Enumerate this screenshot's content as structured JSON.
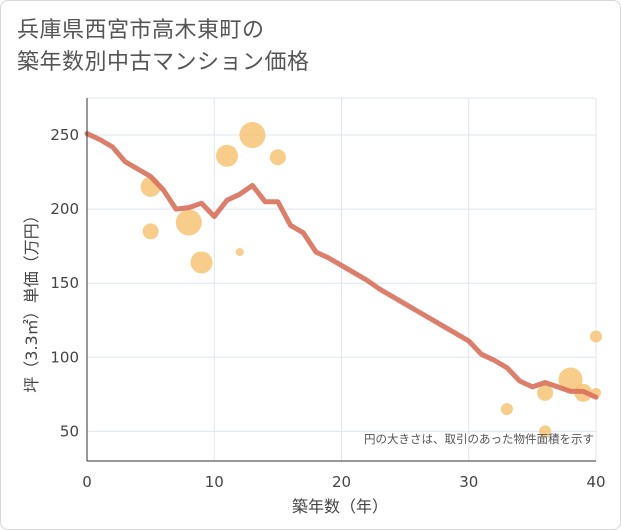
{
  "title_line1": "兵庫県西宮市高木東町の",
  "title_line2": "築年数別中古マンション価格",
  "chart_data": {
    "type": "line+bubble",
    "xlabel": "築年数（年）",
    "ylabel": "坪（3.3㎡）単価（万円）",
    "xlim": [
      0,
      40
    ],
    "ylim": [
      30,
      275
    ],
    "xticks": [
      0,
      10,
      20,
      30,
      40
    ],
    "yticks": [
      50,
      100,
      150,
      200,
      250
    ],
    "note": "円の大きさは、取引のあった物件面積を示す",
    "colors": {
      "line": "#d9705b",
      "bubble": "#f5c16c",
      "grid": "#dfe5ef",
      "axis": "#333333"
    },
    "line": {
      "x": [
        0,
        1,
        2,
        3,
        4,
        5,
        6,
        7,
        8,
        9,
        10,
        11,
        12,
        13,
        14,
        15,
        16,
        17,
        18,
        19,
        20,
        21,
        22,
        23,
        24,
        25,
        26,
        27,
        28,
        29,
        30,
        31,
        32,
        33,
        34,
        35,
        36,
        37,
        38,
        39,
        40
      ],
      "y": [
        251,
        247,
        242,
        232,
        227,
        222,
        213,
        200,
        201,
        204,
        195,
        206,
        210,
        216,
        205,
        205,
        189,
        184,
        171,
        167,
        162,
        157,
        152,
        146,
        141,
        136,
        131,
        126,
        121,
        116,
        111,
        102,
        98,
        93,
        84,
        80,
        83,
        80,
        77,
        77,
        73
      ]
    },
    "bubbles": [
      {
        "x": 5,
        "y": 215,
        "size": 10
      },
      {
        "x": 5,
        "y": 185,
        "size": 8
      },
      {
        "x": 8,
        "y": 191,
        "size": 13
      },
      {
        "x": 9,
        "y": 164,
        "size": 11
      },
      {
        "x": 11,
        "y": 236,
        "size": 11
      },
      {
        "x": 12,
        "y": 171,
        "size": 4
      },
      {
        "x": 13,
        "y": 250,
        "size": 13
      },
      {
        "x": 15,
        "y": 235,
        "size": 8
      },
      {
        "x": 33,
        "y": 65,
        "size": 6
      },
      {
        "x": 36,
        "y": 76,
        "size": 8
      },
      {
        "x": 36,
        "y": 50,
        "size": 6
      },
      {
        "x": 38,
        "y": 85,
        "size": 12
      },
      {
        "x": 39,
        "y": 76,
        "size": 9
      },
      {
        "x": 40,
        "y": 114,
        "size": 6
      },
      {
        "x": 40,
        "y": 76,
        "size": 5
      }
    ]
  }
}
